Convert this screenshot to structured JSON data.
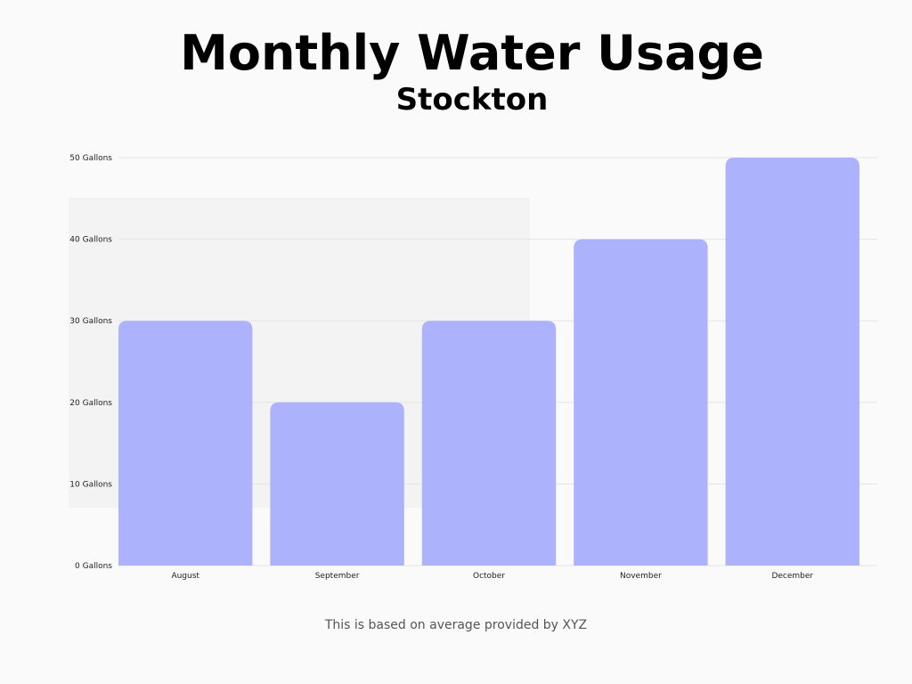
{
  "chart_data": {
    "type": "bar",
    "title": "Monthly Water Usage",
    "subtitle": "Stockton",
    "categories": [
      "August",
      "September",
      "October",
      "November",
      "December"
    ],
    "values": [
      30,
      20,
      30,
      40,
      50
    ],
    "ylim": [
      0,
      50
    ],
    "yticks": [
      {
        "value": 0,
        "label": "0 Gallons"
      },
      {
        "value": 10,
        "label": "10 Gallons"
      },
      {
        "value": 20,
        "label": "20 Gallons"
      },
      {
        "value": 30,
        "label": "30 Gallons"
      },
      {
        "value": 40,
        "label": "40 Gallons"
      },
      {
        "value": 50,
        "label": "50 Gallons"
      }
    ],
    "grid": true,
    "bar_color": "#adb2fd",
    "grid_color": "#e4e4e4",
    "footnote": "This is based on average provided by XYZ"
  }
}
